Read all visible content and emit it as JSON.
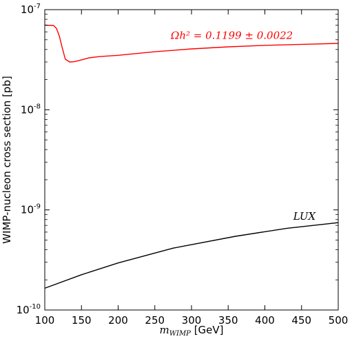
{
  "chart_data": {
    "type": "line",
    "title": "",
    "xlabel_math": "m",
    "xlabel_math_sub": "WIMP",
    "xlabel_unit": " [GeV]",
    "ylabel": "WIMP-nucleon cross section [pb]",
    "xlim": [
      100,
      500
    ],
    "ylim": [
      1e-10,
      1e-07
    ],
    "yscale": "log",
    "grid": false,
    "x_ticks": [
      "100",
      "150",
      "200",
      "250",
      "300",
      "350",
      "400",
      "450",
      "500"
    ],
    "x_tick_values": [
      100,
      150,
      200,
      250,
      300,
      350,
      400,
      450,
      500
    ],
    "y_ticks": [
      {
        "value": 1e-10,
        "base": "10",
        "exp": "-10"
      },
      {
        "value": 1e-09,
        "base": "10",
        "exp": "-9"
      },
      {
        "value": 1e-08,
        "base": "10",
        "exp": "-8"
      },
      {
        "value": 1e-07,
        "base": "10",
        "exp": "-7"
      }
    ],
    "series": [
      {
        "color": "#ff0000",
        "x": [
          100,
          112,
          116,
          120,
          124,
          128,
          134,
          140,
          150,
          160,
          175,
          200,
          250,
          300,
          350,
          400,
          450,
          500
        ],
        "y": [
          7e-08,
          6.95e-08,
          6.5e-08,
          5.4e-08,
          4.1e-08,
          3.2e-08,
          3e-08,
          3.02e-08,
          3.15e-08,
          3.3e-08,
          3.4e-08,
          3.5e-08,
          3.8e-08,
          4.05e-08,
          4.25e-08,
          4.4e-08,
          4.5e-08,
          4.6e-08
        ]
      },
      {
        "color": "#000000",
        "x": [
          100,
          150,
          200,
          275,
          360,
          430,
          500
        ],
        "y": [
          1.65e-10,
          2.25e-10,
          2.95e-10,
          4.15e-10,
          5.45e-10,
          6.55e-10,
          7.45e-10
        ]
      }
    ],
    "annotations": [
      {
        "text": "Ωh² = 0.1199 ± 0.0022",
        "color": "#ff0000",
        "x": 355,
        "y": 5.1e-08
      },
      {
        "text": "LUX",
        "color": "#000000",
        "x": 454,
        "y": 8e-10
      }
    ]
  }
}
